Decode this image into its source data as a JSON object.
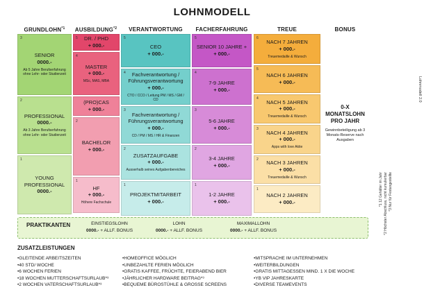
{
  "title": "LOHNMODELL",
  "columns": {
    "grundlohn": "GRUNDLOHN",
    "grundlohn_sup": "*1",
    "ausbildung": "AUSBILDUNG",
    "ausbildung_sup": "*2",
    "verantwortung": "VERANTWORTUNG",
    "fachererfahrung": "FACHERFAHRUNG",
    "treue": "TREUE",
    "bonus": "BONUS"
  },
  "grundlohn": [
    {
      "level": "3",
      "name": "SENIOR",
      "value": "0000.-",
      "note": "Ab 5 Jahre Berufserfahrung ohne Lehr- oder Studienzeit"
    },
    {
      "level": "2",
      "name": "PROFESSIONAL",
      "value": "0000.-",
      "note": "Ab 3 Jahre Berufserfahrung ohne Lehr- oder Studienzeit"
    },
    {
      "level": "1",
      "name": "YOUNG PROFESSIONAL",
      "value": "0000.-",
      "note": ""
    }
  ],
  "ausbildung": [
    {
      "level": "5",
      "name": "DR. / PHD",
      "value": "+ 000.-",
      "note": ""
    },
    {
      "level": "4",
      "name": "MASTER",
      "value": "+ 000.-",
      "note": "MSc, MAS, MBA"
    },
    {
      "level": "",
      "name": "(PRO)CAS",
      "value": "+ 000.-",
      "note": ""
    },
    {
      "level": "2",
      "name": "BACHELOR",
      "value": "+ 000.-",
      "note": ""
    },
    {
      "level": "1",
      "name": "HF",
      "value": "+ 000.-",
      "note": "Höhere Fachschule"
    }
  ],
  "verantwortung": [
    {
      "level": "5",
      "name": "CEO",
      "value": "+ 000.-",
      "note": ""
    },
    {
      "level": "4",
      "name": "Fachverantwortung / Führungsverantwortung",
      "value": "+ 000.-",
      "note": "CTO / CCO / Leitung PM / MS / GM / CD"
    },
    {
      "level": "3",
      "name": "Fachverantwortung / Führungsverantwortung",
      "value": "+ 000.-",
      "note": "CD / PM / MS / HR & Finanzen"
    },
    {
      "level": "2",
      "name": "ZUSATZAUFGABE",
      "value": "+ 000.-",
      "note": "Ausserhalb seines Aufgabenbereiches"
    },
    {
      "level": "1",
      "name": "PROJEKTMITARBEIT",
      "value": "+ 000.-",
      "note": ""
    }
  ],
  "fachererfahrung": [
    {
      "level": "5",
      "name": "SENIOR 10 JAHRE +",
      "value": "+ 000.-",
      "note": ""
    },
    {
      "level": "4",
      "name": "7-9 JAHRE",
      "value": "+ 000.-",
      "note": ""
    },
    {
      "level": "3",
      "name": "5-6 JAHRE",
      "value": "+ 000.-",
      "note": ""
    },
    {
      "level": "2",
      "name": "3-4 JAHRE",
      "value": "+ 000.-",
      "note": ""
    },
    {
      "level": "1",
      "name": "1-2 JAHRE",
      "value": "+ 000.-",
      "note": ""
    }
  ],
  "treue": [
    {
      "level": "6",
      "name": "NACH 7 JAHREN",
      "value": "+ 000.-",
      "note": "Treuemedaille & Wunsch"
    },
    {
      "level": "5",
      "name": "NACH 6 JAHREN",
      "value": "+ 000.-",
      "note": ""
    },
    {
      "level": "4",
      "name": "NACH 5 JAHREN",
      "value": "+ 000.-",
      "note": "Treuemedaille & Wunsch"
    },
    {
      "level": "3",
      "name": "NACH 4 JAHREN",
      "value": "+ 000.-",
      "note": "Apps with love Aktie"
    },
    {
      "level": "2",
      "name": "NACH 3 JAHREN",
      "value": "+ 000.-",
      "note": "Treuemedaille & Wunsch"
    },
    {
      "level": "1",
      "name": "NACH 2 JAHREN",
      "value": "+ 000.-",
      "note": ""
    }
  ],
  "bonus": {
    "range": "0-X",
    "unit": "MONATSLOHN",
    "per": "PRO JAHR",
    "note": "Gewinnbeteiligung ab 3 Monats-Reserve nach Ausgaben"
  },
  "side": {
    "version": "Lohnmodell 2.0",
    "footnotes": [
      "*1 12 Gehälter im Jahr",
      "*2 Höchster Abschluss, nicht kumulierbar",
      "*3 Nur für Festangestellte"
    ]
  },
  "praktikanten": {
    "label": "PRAKTIKANTEN",
    "columns": [
      {
        "head": "EINSTIEGSLOHN",
        "value": "0000.-",
        "suffix": " + ALLF. BONUS"
      },
      {
        "head": "LOHN",
        "value": "0000.-",
        "suffix": " + ALLF. BONUS"
      },
      {
        "head": "MAXIMALLOHN",
        "value": "0000.-",
        "suffix": " + ALLF. BONUS"
      }
    ]
  },
  "zusatz": {
    "title": "ZUSATZLEISTUNGEN",
    "col1": [
      "GLEITENDE ARBEITSZEITEN",
      "40 STD/ WOCHE",
      "6 WOCHEN FERIEN",
      "18 WOCHEN MUTTERSCHAFTSURLAUB*³",
      "2 WOCHEN VATERSCHAFTSURLAUB*³"
    ],
    "col2": [
      "HOMEOFFICE MÖGLICH",
      "UNBEZAHLTE FERIEN MÖGLICH",
      "GRATIS KAFFEE, FRÜCHTE, FEIERABEND BIER",
      "JÄHRLICHER HARDWARE BEITRAG*³",
      "BEQUEME BÜROSTÜHLE & GROSSE SCREENS"
    ],
    "col3": [
      "MITSPRACHE IM UNTERNEHMEN",
      "WEITERBILDUNGEN",
      "GRATIS MITTAGESSEN MIND. 1 X DIE WOCHE",
      "YB VIP JAHRESKARTE",
      "DIVERSE TEAMEVENTS"
    ]
  },
  "colors": {
    "grundlohn": [
      "#a3d574",
      "#b9e08f",
      "#cfe9ae"
    ],
    "ausbildung": [
      "#e2466a",
      "#e9627e",
      "#ef8199",
      "#f29eb0",
      "#f6bccb"
    ],
    "verantwortung": [
      "#58c4c1",
      "#74cfcc",
      "#90d9d6",
      "#abe3e0",
      "#c6ecea"
    ],
    "fachererfahrung": [
      "#c457c6",
      "#cd71cf",
      "#d78bd8",
      "#e0a6e2",
      "#eac2eb"
    ],
    "treue": [
      "#f4ad3c",
      "#f6bb56",
      "#f8c86f",
      "#f9d48b",
      "#fbdfa6",
      "#fcebc4"
    ],
    "praktikanten_bg": "#e8f5d3"
  }
}
